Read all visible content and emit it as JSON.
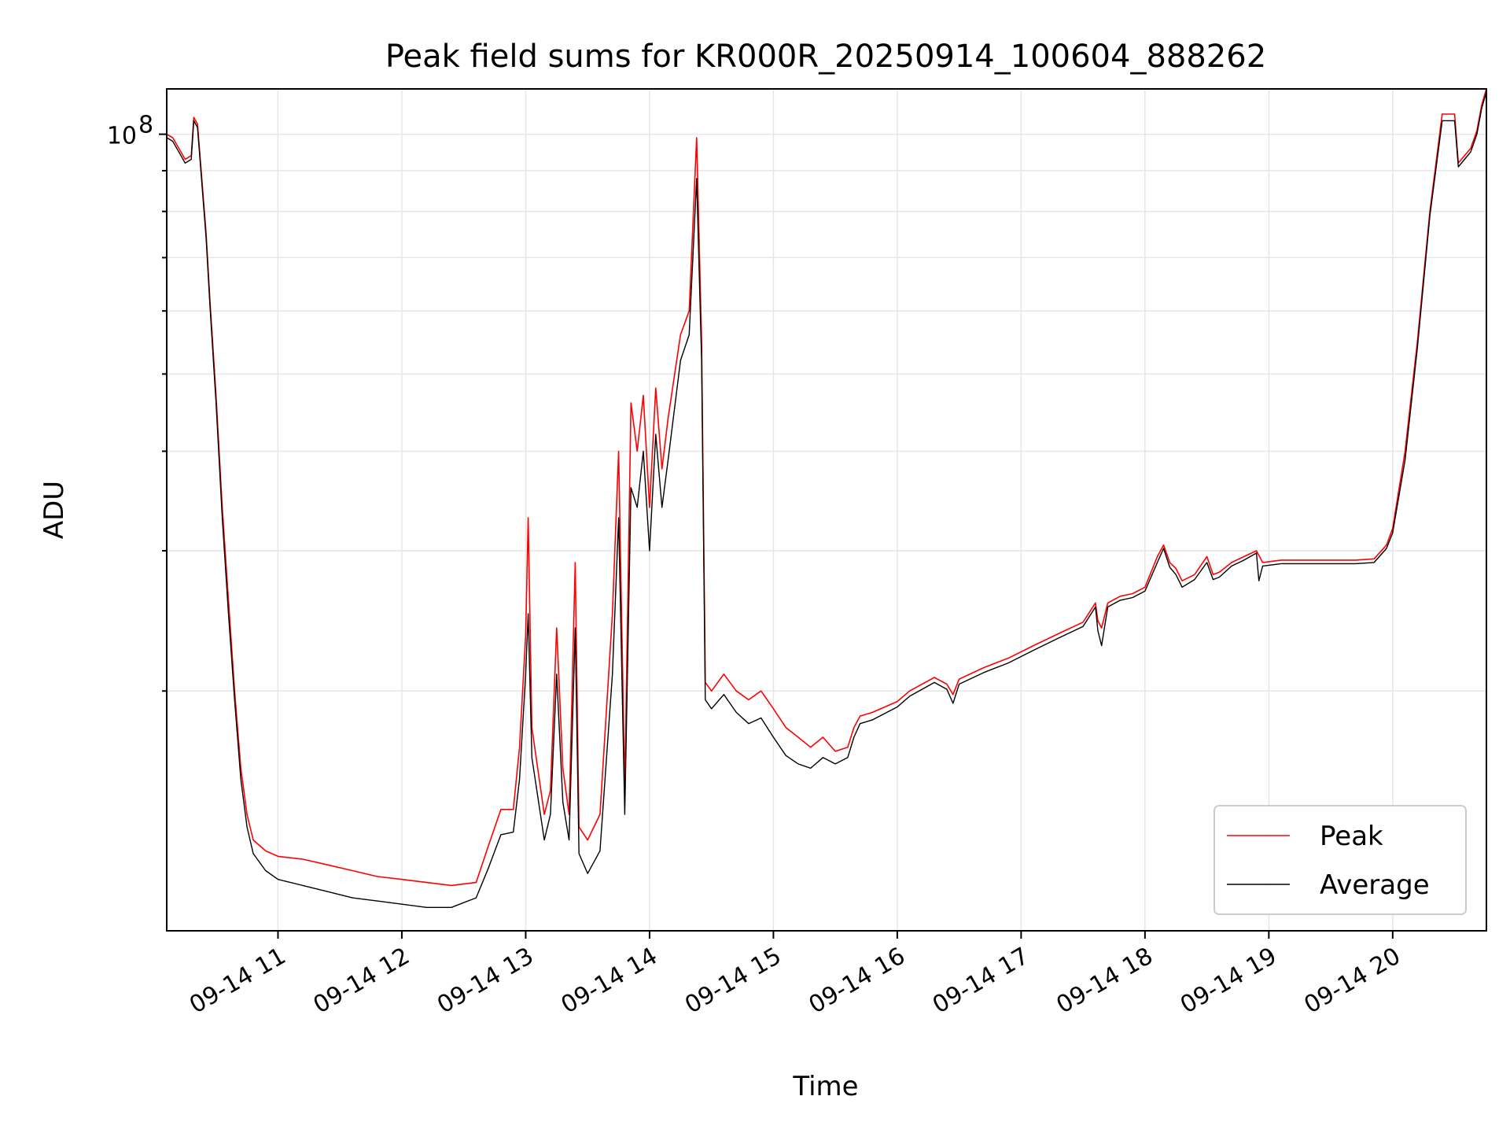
{
  "chart_data": {
    "type": "line",
    "title": "Peak field sums for KR000R_20250914_100604_888262",
    "xlabel": "Time",
    "ylabel": "ADU",
    "y_scale": "log",
    "x_tick_labels": [
      "09-14 11",
      "09-14 12",
      "09-14 13",
      "09-14 14",
      "09-14 15",
      "09-14 16",
      "09-14 17",
      "09-14 18",
      "09-14 19",
      "09-14 20"
    ],
    "x_tick_hours": [
      11,
      12,
      13,
      14,
      15,
      16,
      17,
      18,
      19,
      20
    ],
    "xlim_hours": [
      10.1017,
      20.7567
    ],
    "ylim": [
      10000000,
      114000000
    ],
    "y_major_ticks": [
      {
        "value": 100000000,
        "base": "10",
        "exp": "8"
      }
    ],
    "y_minor_ticks": [
      20000000,
      30000000,
      40000000,
      50000000,
      60000000,
      70000000,
      80000000,
      90000000
    ],
    "grid": true,
    "legend_position": "lower-right",
    "series": [
      {
        "name": "Peak",
        "color": "#ff0000",
        "points": [
          [
            10.1017,
            100000000
          ],
          [
            10.15,
            99000000
          ],
          [
            10.2,
            96000000
          ],
          [
            10.25,
            93000000
          ],
          [
            10.3,
            94000000
          ],
          [
            10.32,
            105000000
          ],
          [
            10.35,
            103000000
          ],
          [
            10.38,
            90000000
          ],
          [
            10.42,
            75000000
          ],
          [
            10.45,
            62000000
          ],
          [
            10.5,
            47000000
          ],
          [
            10.55,
            34000000
          ],
          [
            10.6,
            26000000
          ],
          [
            10.65,
            20000000
          ],
          [
            10.7,
            16000000
          ],
          [
            10.75,
            14000000
          ],
          [
            10.8,
            13000000
          ],
          [
            10.9,
            12600000
          ],
          [
            11.0,
            12400000
          ],
          [
            11.2,
            12300000
          ],
          [
            11.4,
            12100000
          ],
          [
            11.6,
            11900000
          ],
          [
            11.8,
            11700000
          ],
          [
            12.0,
            11600000
          ],
          [
            12.2,
            11500000
          ],
          [
            12.4,
            11400000
          ],
          [
            12.6,
            11500000
          ],
          [
            12.7,
            12800000
          ],
          [
            12.8,
            14200000
          ],
          [
            12.9,
            14200000
          ],
          [
            12.95,
            17000000
          ],
          [
            13.0,
            23500000
          ],
          [
            13.02,
            33000000
          ],
          [
            13.05,
            18000000
          ],
          [
            13.15,
            14000000
          ],
          [
            13.2,
            15000000
          ],
          [
            13.25,
            24000000
          ],
          [
            13.3,
            16000000
          ],
          [
            13.35,
            14000000
          ],
          [
            13.4,
            29000000
          ],
          [
            13.43,
            13500000
          ],
          [
            13.5,
            13000000
          ],
          [
            13.6,
            14000000
          ],
          [
            13.7,
            25000000
          ],
          [
            13.75,
            40000000
          ],
          [
            13.8,
            15000000
          ],
          [
            13.85,
            46000000
          ],
          [
            13.9,
            40000000
          ],
          [
            13.95,
            47000000
          ],
          [
            14.0,
            34000000
          ],
          [
            14.05,
            48000000
          ],
          [
            14.1,
            38000000
          ],
          [
            14.15,
            44000000
          ],
          [
            14.25,
            56000000
          ],
          [
            14.32,
            60000000
          ],
          [
            14.38,
            99000000
          ],
          [
            14.42,
            55000000
          ],
          [
            14.45,
            20500000
          ],
          [
            14.5,
            20000000
          ],
          [
            14.6,
            21000000
          ],
          [
            14.7,
            20000000
          ],
          [
            14.8,
            19500000
          ],
          [
            14.9,
            20000000
          ],
          [
            15.0,
            19000000
          ],
          [
            15.1,
            18000000
          ],
          [
            15.2,
            17500000
          ],
          [
            15.3,
            17000000
          ],
          [
            15.4,
            17500000
          ],
          [
            15.5,
            16800000
          ],
          [
            15.6,
            17000000
          ],
          [
            15.65,
            18000000
          ],
          [
            15.7,
            18600000
          ],
          [
            15.8,
            18800000
          ],
          [
            16.0,
            19400000
          ],
          [
            16.1,
            20000000
          ],
          [
            16.3,
            20800000
          ],
          [
            16.4,
            20400000
          ],
          [
            16.45,
            19800000
          ],
          [
            16.5,
            20700000
          ],
          [
            16.7,
            21400000
          ],
          [
            16.9,
            22000000
          ],
          [
            17.1,
            22800000
          ],
          [
            17.3,
            23600000
          ],
          [
            17.5,
            24400000
          ],
          [
            17.6,
            25800000
          ],
          [
            17.62,
            24500000
          ],
          [
            17.65,
            24000000
          ],
          [
            17.7,
            25800000
          ],
          [
            17.8,
            26300000
          ],
          [
            17.9,
            26500000
          ],
          [
            18.0,
            27000000
          ],
          [
            18.1,
            29500000
          ],
          [
            18.15,
            30500000
          ],
          [
            18.2,
            29000000
          ],
          [
            18.25,
            28500000
          ],
          [
            18.3,
            27500000
          ],
          [
            18.4,
            28000000
          ],
          [
            18.5,
            29500000
          ],
          [
            18.55,
            28000000
          ],
          [
            18.6,
            28200000
          ],
          [
            18.7,
            29000000
          ],
          [
            18.8,
            29500000
          ],
          [
            18.9,
            30000000
          ],
          [
            18.92,
            29600000
          ],
          [
            18.95,
            29000000
          ],
          [
            19.1,
            29200000
          ],
          [
            19.3,
            29200000
          ],
          [
            19.5,
            29200000
          ],
          [
            19.7,
            29200000
          ],
          [
            19.85,
            29300000
          ],
          [
            19.95,
            30500000
          ],
          [
            20.0,
            32000000
          ],
          [
            20.1,
            40000000
          ],
          [
            20.2,
            55000000
          ],
          [
            20.3,
            80000000
          ],
          [
            20.4,
            106000000
          ],
          [
            20.5,
            106000000
          ],
          [
            20.53,
            92000000
          ],
          [
            20.58,
            94000000
          ],
          [
            20.63,
            96000000
          ],
          [
            20.68,
            101000000
          ],
          [
            20.72,
            109000000
          ],
          [
            20.7567,
            114000000
          ]
        ]
      },
      {
        "name": "Average",
        "color": "#000000",
        "points": [
          [
            10.1017,
            99000000
          ],
          [
            10.15,
            98000000
          ],
          [
            10.2,
            95000000
          ],
          [
            10.25,
            92000000
          ],
          [
            10.3,
            93000000
          ],
          [
            10.32,
            104000000
          ],
          [
            10.35,
            102000000
          ],
          [
            10.38,
            89000000
          ],
          [
            10.42,
            74000000
          ],
          [
            10.45,
            61000000
          ],
          [
            10.5,
            46000000
          ],
          [
            10.55,
            33000000
          ],
          [
            10.6,
            25000000
          ],
          [
            10.65,
            19500000
          ],
          [
            10.7,
            15500000
          ],
          [
            10.75,
            13500000
          ],
          [
            10.8,
            12500000
          ],
          [
            10.9,
            11900000
          ],
          [
            11.0,
            11600000
          ],
          [
            11.2,
            11400000
          ],
          [
            11.4,
            11200000
          ],
          [
            11.6,
            11000000
          ],
          [
            11.8,
            10900000
          ],
          [
            12.0,
            10800000
          ],
          [
            12.2,
            10700000
          ],
          [
            12.4,
            10700000
          ],
          [
            12.6,
            11000000
          ],
          [
            12.7,
            12000000
          ],
          [
            12.8,
            13200000
          ],
          [
            12.9,
            13300000
          ],
          [
            12.95,
            15500000
          ],
          [
            13.0,
            21000000
          ],
          [
            13.02,
            25000000
          ],
          [
            13.05,
            16500000
          ],
          [
            13.15,
            13000000
          ],
          [
            13.2,
            14000000
          ],
          [
            13.25,
            21000000
          ],
          [
            13.3,
            14500000
          ],
          [
            13.35,
            13000000
          ],
          [
            13.4,
            24000000
          ],
          [
            13.43,
            12500000
          ],
          [
            13.5,
            11800000
          ],
          [
            13.6,
            12600000
          ],
          [
            13.7,
            21000000
          ],
          [
            13.75,
            33000000
          ],
          [
            13.8,
            14000000
          ],
          [
            13.85,
            36000000
          ],
          [
            13.9,
            34000000
          ],
          [
            13.95,
            40000000
          ],
          [
            14.0,
            30000000
          ],
          [
            14.05,
            42000000
          ],
          [
            14.1,
            34000000
          ],
          [
            14.15,
            39000000
          ],
          [
            14.25,
            52000000
          ],
          [
            14.32,
            56000000
          ],
          [
            14.38,
            88000000
          ],
          [
            14.42,
            52000000
          ],
          [
            14.45,
            19500000
          ],
          [
            14.5,
            19000000
          ],
          [
            14.6,
            19800000
          ],
          [
            14.7,
            18800000
          ],
          [
            14.8,
            18200000
          ],
          [
            14.9,
            18500000
          ],
          [
            15.0,
            17500000
          ],
          [
            15.1,
            16600000
          ],
          [
            15.2,
            16200000
          ],
          [
            15.3,
            16000000
          ],
          [
            15.4,
            16500000
          ],
          [
            15.5,
            16200000
          ],
          [
            15.6,
            16500000
          ],
          [
            15.65,
            17500000
          ],
          [
            15.7,
            18200000
          ],
          [
            15.8,
            18400000
          ],
          [
            16.0,
            19100000
          ],
          [
            16.1,
            19700000
          ],
          [
            16.3,
            20500000
          ],
          [
            16.4,
            20100000
          ],
          [
            16.45,
            19300000
          ],
          [
            16.5,
            20400000
          ],
          [
            16.7,
            21100000
          ],
          [
            16.9,
            21700000
          ],
          [
            17.1,
            22500000
          ],
          [
            17.3,
            23300000
          ],
          [
            17.5,
            24100000
          ],
          [
            17.6,
            25500000
          ],
          [
            17.62,
            23800000
          ],
          [
            17.65,
            22800000
          ],
          [
            17.7,
            25500000
          ],
          [
            17.8,
            26000000
          ],
          [
            17.9,
            26200000
          ],
          [
            18.0,
            26700000
          ],
          [
            18.1,
            29000000
          ],
          [
            18.15,
            30200000
          ],
          [
            18.2,
            28600000
          ],
          [
            18.25,
            28000000
          ],
          [
            18.3,
            27000000
          ],
          [
            18.4,
            27600000
          ],
          [
            18.5,
            29000000
          ],
          [
            18.55,
            27600000
          ],
          [
            18.6,
            27800000
          ],
          [
            18.7,
            28700000
          ],
          [
            18.8,
            29200000
          ],
          [
            18.9,
            29800000
          ],
          [
            18.92,
            27500000
          ],
          [
            18.95,
            28700000
          ],
          [
            19.1,
            28900000
          ],
          [
            19.3,
            28900000
          ],
          [
            19.5,
            28900000
          ],
          [
            19.7,
            28900000
          ],
          [
            19.85,
            29000000
          ],
          [
            19.95,
            30200000
          ],
          [
            20.0,
            31600000
          ],
          [
            20.1,
            39000000
          ],
          [
            20.2,
            54000000
          ],
          [
            20.3,
            79000000
          ],
          [
            20.4,
            104000000
          ],
          [
            20.5,
            104000000
          ],
          [
            20.53,
            91000000
          ],
          [
            20.58,
            93000000
          ],
          [
            20.63,
            95000000
          ],
          [
            20.68,
            100000000
          ],
          [
            20.72,
            108000000
          ],
          [
            20.7567,
            113000000
          ]
        ]
      }
    ]
  }
}
